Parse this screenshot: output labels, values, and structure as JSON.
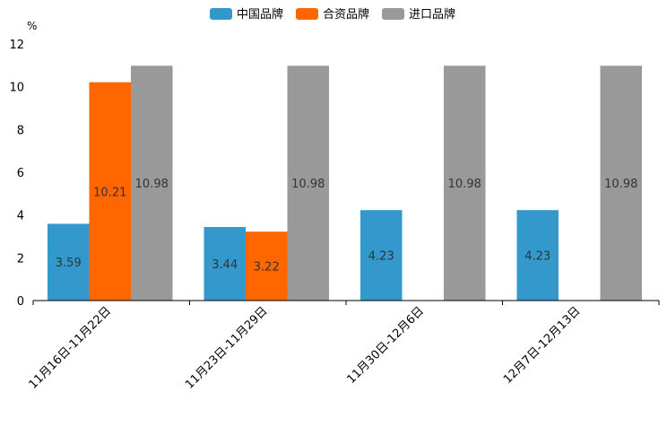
{
  "chart_data": {
    "type": "bar",
    "ylabel": "%",
    "ylim": [
      0,
      12
    ],
    "yticks": [
      0,
      2,
      4,
      6,
      8,
      10,
      12
    ],
    "categories": [
      "11月16日-11月22日",
      "11月23日-11月29日",
      "11月30日-12月6日",
      "12月7日-12月13日"
    ],
    "series": [
      {
        "name": "中国品牌",
        "color": "#3399cc",
        "values": [
          3.59,
          3.44,
          4.23,
          4.23
        ],
        "labels": [
          "3.59",
          "3.44",
          "4.23",
          "4.23"
        ]
      },
      {
        "name": "合资品牌",
        "color": "#ff6600",
        "values": [
          10.21,
          3.22,
          null,
          null
        ],
        "labels": [
          "10.21",
          "3.22",
          "",
          ""
        ]
      },
      {
        "name": "进口品牌",
        "color": "#999999",
        "values": [
          10.98,
          10.98,
          10.98,
          10.98
        ],
        "labels": [
          "10.98",
          "10.98",
          "10.98",
          "10.98"
        ]
      }
    ],
    "legend_position": "top-center",
    "grid": false
  }
}
